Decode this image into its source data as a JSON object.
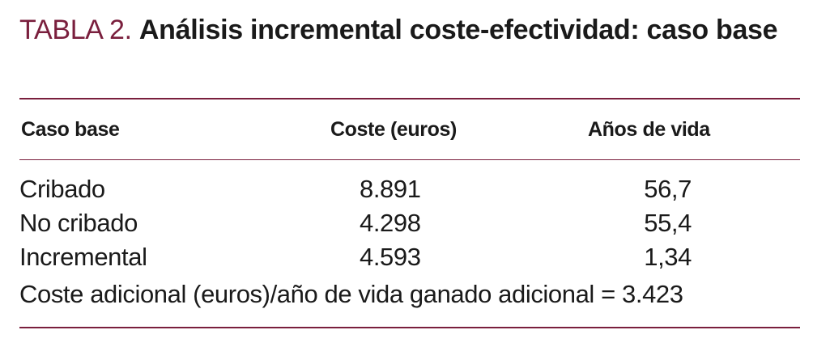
{
  "title": {
    "label": "TABLA 2.",
    "text": "Análisis incremental coste-efectividad: caso base"
  },
  "table": {
    "headers": [
      "Caso base",
      "Coste (euros)",
      "Años de vida"
    ],
    "rows": [
      {
        "name": "Cribado",
        "cost": "8.891",
        "years": "56,7"
      },
      {
        "name": "No cribado",
        "cost": "4.298",
        "years": "55,4"
      },
      {
        "name": "Incremental",
        "cost": "4.593",
        "years": "1,34"
      }
    ],
    "footer": "Coste adicional (euros)/año de vida ganado adicional = 3.423"
  },
  "colors": {
    "accent": "#7a1f3d",
    "text": "#1a1a1a"
  }
}
